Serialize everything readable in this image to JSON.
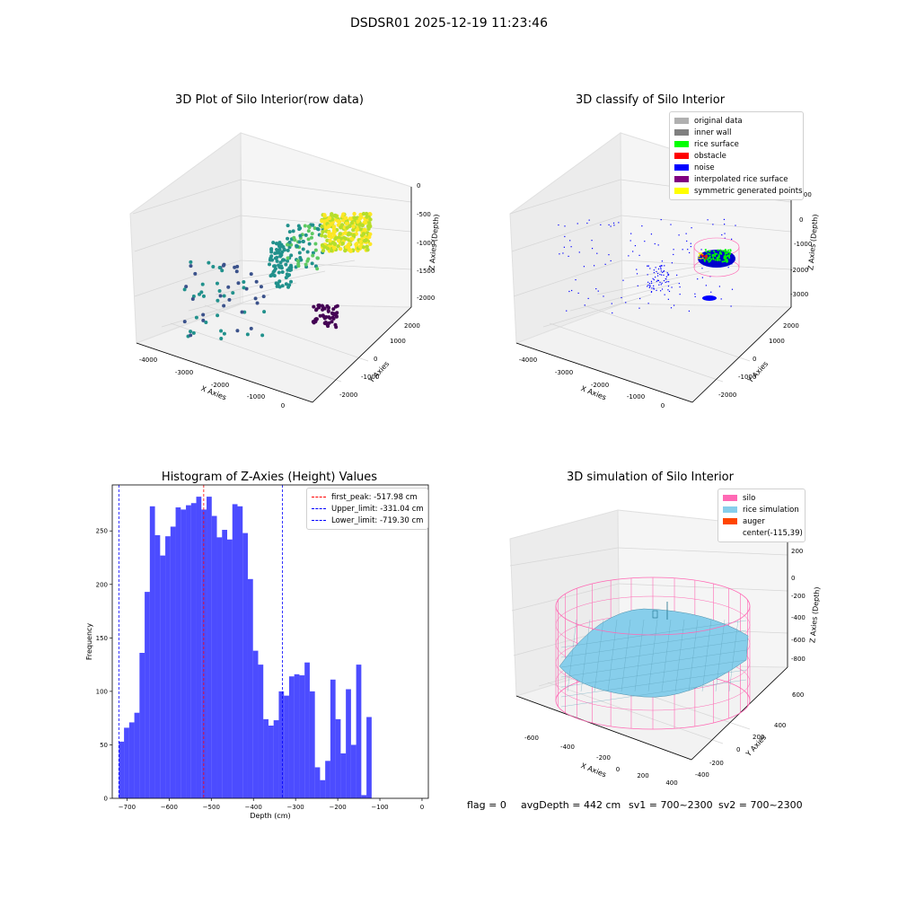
{
  "figure_title": "DSDSR01 2025-12-19 11:23:46",
  "panels": {
    "raw": {
      "title": "3D Plot of Silo Interior(row data)",
      "xlabel": "X Axies",
      "ylabel": "Y Axies",
      "zlabel": "Z Axies (Depth)",
      "xticks": [
        "-4000",
        "-3000",
        "-2000",
        "-1000",
        "0"
      ],
      "yticks": [
        "-2000",
        "-1000",
        "0",
        "1000",
        "2000"
      ],
      "zticks": [
        "0",
        "-500",
        "-1000",
        "-1500",
        "-2000"
      ]
    },
    "classify": {
      "title": "3D classify of Silo Interior",
      "xlabel": "X Axies",
      "ylabel": "Y Axies",
      "zlabel": "Z Axies (Depth)",
      "xticks": [
        "-4000",
        "-3000",
        "-2000",
        "-1000",
        "0"
      ],
      "yticks": [
        "-2000",
        "-1000",
        "0",
        "1000",
        "2000"
      ],
      "zticks": [
        "1000",
        "0",
        "-1000",
        "-2000",
        "-3000"
      ],
      "legend": [
        {
          "label": "original data",
          "color": "#b0b0b0"
        },
        {
          "label": "inner wall",
          "color": "#808080"
        },
        {
          "label": "rice surface",
          "color": "#00ff00"
        },
        {
          "label": "obstacle",
          "color": "#ff0000"
        },
        {
          "label": "noise",
          "color": "#0000ff"
        },
        {
          "label": "interpolated rice surface",
          "color": "#800080"
        },
        {
          "label": "symmetric generated points",
          "color": "#ffff00"
        }
      ]
    },
    "simulation": {
      "title": "3D simulation of Silo Interior",
      "xlabel": "X Axies",
      "ylabel": "Y Axies",
      "zlabel": "Z Axies (Depth)",
      "xticks": [
        "-600",
        "-400",
        "-200",
        "0",
        "200",
        "400"
      ],
      "yticks": [
        "-400",
        "-200",
        "0",
        "200",
        "400",
        "600"
      ],
      "zticks": [
        "200",
        "0",
        "-200",
        "-400",
        "-600",
        "-800"
      ],
      "legend": [
        {
          "label": "silo",
          "color": "#ff69b4"
        },
        {
          "label": "rice simulation",
          "color": "#87ceeb"
        },
        {
          "label": "auger",
          "color": "#ff4500"
        },
        {
          "label": "center(-115,39)",
          "color": ""
        }
      ]
    }
  },
  "footer": {
    "flag": "flag = 0",
    "avg_depth": "avgDepth = 442 cm",
    "sv1": "sv1 = 700~2300",
    "sv2": "sv2 = 700~2300"
  },
  "chart_data": {
    "type": "bar",
    "title": "Histogram of Z-Axies (Height) Values",
    "xlabel": "Depth (cm)",
    "ylabel": "Frequency",
    "xlim": [
      -735,
      15
    ],
    "ylim": [
      0,
      293
    ],
    "xticks": [
      -700,
      -600,
      -500,
      -400,
      -300,
      -200,
      -100,
      0
    ],
    "yticks": [
      0,
      50,
      100,
      150,
      200,
      250
    ],
    "bar_color": "#0000ff",
    "bin_edges_start": -719.3,
    "bin_width": 12.24,
    "values": [
      53,
      66,
      71,
      80,
      136,
      193,
      273,
      246,
      227,
      245,
      254,
      272,
      270,
      274,
      276,
      282,
      270,
      282,
      264,
      244,
      251,
      242,
      275,
      273,
      248,
      205,
      138,
      125,
      74,
      68,
      73,
      100,
      96,
      114,
      116,
      115,
      127,
      100,
      29,
      17,
      35,
      111,
      74,
      42,
      102,
      50,
      125,
      3,
      76
    ],
    "vlines": [
      {
        "label": "first_peak: -517.98 cm",
        "x": -517.98,
        "color": "#ff0000"
      },
      {
        "label": "Upper_limit: -331.04 cm",
        "x": -331.04,
        "color": "#0000ff"
      },
      {
        "label": "Lower_limit: -719.30 cm",
        "x": -719.3,
        "color": "#0000ff"
      }
    ],
    "legend_position": "top-right"
  }
}
